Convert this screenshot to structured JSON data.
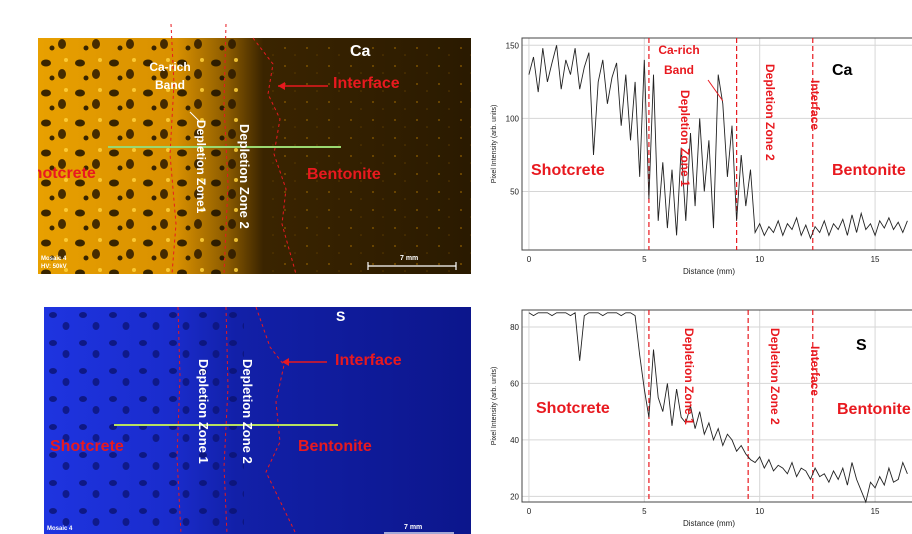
{
  "maps": [
    {
      "element": "Ca",
      "color": "#f2a900",
      "labels": {
        "element": "Ca",
        "interface": "Interface",
        "shotcrete": "Shotcrete",
        "bentonite": "Bentonite",
        "ca_rich_band": "Ca-rich Band",
        "depletion_zone_1": "Depletion Zone1",
        "depletion_zone_2": "Depletion Zone 2",
        "mosaic": "Mosaic 4",
        "hv": "HV: 50kV",
        "scale": "7 mm"
      }
    },
    {
      "element": "S",
      "color": "#1a2cd8",
      "labels": {
        "element": "S",
        "interface": "Interface",
        "shotcrete": "Shotcrete",
        "bentonite": "Bentonite",
        "depletion_zone_1": "Depletion Zone 1",
        "depletion_zone_2": "Depletion Zone 2",
        "mosaic": "Mosaic 4",
        "scale": "7 mm"
      }
    }
  ],
  "chart_data": [
    {
      "type": "line",
      "title": "",
      "xlabel": "Distance (mm)",
      "ylabel": "Pixel Intensity (arb. units)",
      "xlim": [
        -0.3,
        16.6
      ],
      "ylim": [
        10,
        155
      ],
      "xticks": [
        0,
        5,
        10,
        15
      ],
      "yticks": [
        50,
        100,
        150
      ],
      "grid": true,
      "boundaries": [
        5.2,
        9.0,
        12.3
      ],
      "annotations": {
        "element": "Ca",
        "shotcrete": "Shotcrete",
        "ca_rich_band": "Ca-rich Band",
        "depletion_zone_1": "Depletion Zone 1",
        "depletion_zone_2": "Depletion Zone 2",
        "interface": "Interface",
        "bentonite": "Bentonite"
      },
      "x": [
        0,
        0.2,
        0.4,
        0.6,
        0.8,
        1.0,
        1.2,
        1.4,
        1.6,
        1.8,
        2.0,
        2.2,
        2.4,
        2.6,
        2.8,
        3.0,
        3.2,
        3.4,
        3.6,
        3.8,
        4.0,
        4.2,
        4.4,
        4.6,
        4.8,
        5.0,
        5.2,
        5.4,
        5.6,
        5.8,
        6.0,
        6.2,
        6.4,
        6.6,
        6.8,
        7.0,
        7.2,
        7.4,
        7.6,
        7.8,
        8.0,
        8.2,
        8.4,
        8.6,
        8.8,
        9.0,
        9.2,
        9.4,
        9.6,
        9.8,
        10.0,
        10.2,
        10.4,
        10.6,
        10.8,
        11.0,
        11.2,
        11.4,
        11.6,
        11.8,
        12.0,
        12.2,
        12.4,
        12.6,
        12.8,
        13.0,
        13.2,
        13.4,
        13.6,
        13.8,
        14.0,
        14.2,
        14.4,
        14.6,
        14.8,
        15.0,
        15.2,
        15.4,
        15.6,
        15.8,
        16.0,
        16.2,
        16.4
      ],
      "y": [
        130,
        142,
        118,
        148,
        125,
        138,
        150,
        120,
        140,
        130,
        148,
        120,
        135,
        145,
        75,
        125,
        140,
        110,
        128,
        138,
        95,
        130,
        85,
        125,
        60,
        140,
        45,
        130,
        30,
        70,
        25,
        65,
        20,
        80,
        30,
        90,
        40,
        100,
        50,
        85,
        25,
        130,
        110,
        60,
        95,
        30,
        75,
        40,
        65,
        22,
        28,
        20,
        26,
        22,
        30,
        20,
        28,
        24,
        32,
        20,
        27,
        18,
        26,
        22,
        30,
        20,
        28,
        24,
        31,
        20,
        34,
        22,
        35,
        24,
        28,
        20,
        30,
        25,
        32,
        24,
        29,
        22,
        30
      ]
    },
    {
      "type": "line",
      "title": "",
      "xlabel": "Distance (mm)",
      "ylabel": "Pixel Intensity (arb. units)",
      "xlim": [
        -0.3,
        16.6
      ],
      "ylim": [
        18,
        86
      ],
      "xticks": [
        0,
        5,
        10,
        15
      ],
      "yticks": [
        20,
        40,
        60,
        80
      ],
      "grid": true,
      "boundaries": [
        5.2,
        9.5,
        12.3
      ],
      "annotations": {
        "element": "S",
        "shotcrete": "Shotcrete",
        "depletion_zone_1": "Depletion Zone 1",
        "depletion_zone_2": "Depletion Zone 2",
        "interface": "Interface",
        "bentonite": "Bentonite"
      },
      "x": [
        0,
        0.2,
        0.4,
        0.6,
        0.8,
        1.0,
        1.2,
        1.4,
        1.6,
        1.8,
        2.0,
        2.2,
        2.4,
        2.6,
        2.8,
        3.0,
        3.2,
        3.4,
        3.6,
        3.8,
        4.0,
        4.2,
        4.4,
        4.6,
        4.8,
        5.0,
        5.2,
        5.4,
        5.6,
        5.8,
        6.0,
        6.2,
        6.4,
        6.6,
        6.8,
        7.0,
        7.2,
        7.4,
        7.6,
        7.8,
        8.0,
        8.2,
        8.4,
        8.6,
        8.8,
        9.0,
        9.2,
        9.4,
        9.6,
        9.8,
        10.0,
        10.2,
        10.4,
        10.6,
        10.8,
        11.0,
        11.2,
        11.4,
        11.6,
        11.8,
        12.0,
        12.2,
        12.4,
        12.6,
        12.8,
        13.0,
        13.2,
        13.4,
        13.6,
        13.8,
        14.0,
        14.2,
        14.4,
        14.6,
        14.8,
        15.0,
        15.2,
        15.4,
        15.6,
        15.8,
        16.0,
        16.2,
        16.4
      ],
      "y": [
        85,
        84,
        85,
        85,
        85,
        84,
        85,
        85,
        85,
        84,
        85,
        68,
        84,
        85,
        85,
        85,
        84,
        85,
        85,
        85,
        84,
        85,
        85,
        84,
        70,
        58,
        48,
        72,
        55,
        50,
        60,
        45,
        58,
        48,
        46,
        52,
        44,
        50,
        42,
        46,
        40,
        44,
        38,
        42,
        40,
        36,
        38,
        35,
        33,
        32,
        34,
        30,
        33,
        29,
        31,
        30,
        28,
        32,
        27,
        30,
        29,
        26,
        30,
        27,
        28,
        25,
        29,
        26,
        30,
        24,
        32,
        26,
        22,
        18,
        25,
        23,
        27,
        24,
        30,
        25,
        26,
        32,
        28
      ]
    }
  ]
}
